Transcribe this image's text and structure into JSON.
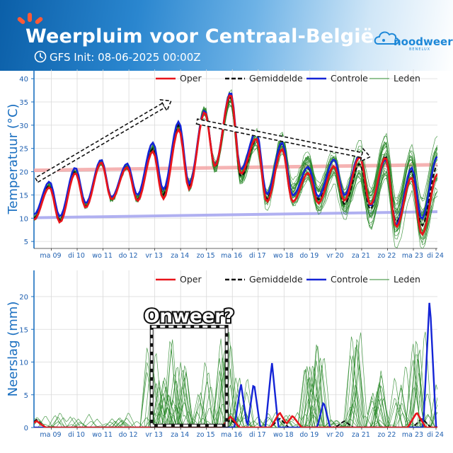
{
  "header": {
    "title": "Weerpluim voor  Centraal-België",
    "init": "GFS Init: 08-06-2025 00:00Z",
    "logo_text": "noodweer",
    "logo_sub": "BENELUX",
    "sun_icon": "sun-rays-icon",
    "clock_icon": "clock-icon",
    "logo_icon": "cloud-logo-icon"
  },
  "colors": {
    "oper": "#e8141b",
    "mean": "#111111",
    "control": "#1424d6",
    "members": "#2b8a2b",
    "normal_max": "#f2a0a0",
    "normal_min": "#a7a7f0",
    "axis_label": "#1a6fc0",
    "tick_label": "#2060b0"
  },
  "chart_data": [
    {
      "type": "line",
      "ylabel": "Temperatuur (°C)",
      "ylim": [
        3.5,
        42
      ],
      "yticks": [
        5,
        10,
        15,
        20,
        25,
        30,
        35,
        40
      ],
      "xlim": [
        0,
        15.6
      ],
      "x_tick_positions": [
        0.67,
        1.67,
        2.67,
        3.67,
        4.67,
        5.67,
        6.67,
        7.67,
        8.67,
        9.67,
        10.67,
        11.67,
        12.67,
        13.67,
        14.67,
        15.67
      ],
      "x_tick_labels": [
        "ma 09",
        "di 10",
        "wo 11",
        "do 12",
        "vr 13",
        "za 14",
        "zo 15",
        "ma 16",
        "di 17",
        "wo 18",
        "do 19",
        "vr 20",
        "za 21",
        "zo 22",
        "ma 23",
        "di 24"
      ],
      "legend": [
        "Oper",
        "Gemiddelde",
        "Controle",
        "Leden"
      ],
      "legend_position": "top",
      "grid": true,
      "normal_max": {
        "x": [
          0,
          15.6
        ],
        "y": [
          20.3,
          21.5
        ]
      },
      "normal_min": {
        "x": [
          0,
          15.6
        ],
        "y": [
          10.1,
          11.4
        ]
      },
      "day_min": [
        10,
        9.5,
        12.5,
        14,
        14,
        15,
        17,
        21,
        19,
        14,
        15,
        14,
        13,
        12,
        9,
        8.5
      ],
      "day_max": [
        17,
        20,
        22,
        21,
        25,
        30,
        33,
        36,
        27,
        26,
        21,
        21,
        22,
        23,
        20.5,
        21,
        18
      ],
      "members_count": 30,
      "series": [
        {
          "name": "Oper",
          "role": "oper"
        },
        {
          "name": "Gemiddelde",
          "role": "mean"
        },
        {
          "name": "Controle",
          "role": "control"
        },
        {
          "name": "Leden",
          "role": "members"
        }
      ],
      "annotations": [
        {
          "type": "dashed-arrow",
          "from": [
            0.1,
            18.2
          ],
          "to": [
            5.3,
            35.2
          ]
        },
        {
          "type": "dashed-arrow",
          "from": [
            6.3,
            30.8
          ],
          "to": [
            13.0,
            23.2
          ]
        }
      ]
    },
    {
      "type": "line",
      "ylabel": "Neerslag (mm)",
      "ylim": [
        0,
        24
      ],
      "yticks": [
        0,
        5,
        10,
        15,
        20
      ],
      "xlim": [
        0,
        15.6
      ],
      "x_tick_positions": [
        0.67,
        1.67,
        2.67,
        3.67,
        4.67,
        5.67,
        6.67,
        7.67,
        8.67,
        9.67,
        10.67,
        11.67,
        12.67,
        13.67,
        14.67,
        15.67
      ],
      "x_tick_labels": [
        "ma 09",
        "di 10",
        "wo 11",
        "do 12",
        "vr 13",
        "za 14",
        "zo 15",
        "ma 16",
        "di 17",
        "wo 18",
        "do 19",
        "vr 20",
        "za 21",
        "zo 22",
        "ma 23",
        "di 24"
      ],
      "legend": [
        "Oper",
        "Gemiddelde",
        "Controle",
        "Leden"
      ],
      "legend_position": "top",
      "grid": true,
      "series": [
        {
          "name": "Oper",
          "role": "oper"
        },
        {
          "name": "Gemiddelde",
          "role": "mean"
        },
        {
          "name": "Controle",
          "role": "control"
        },
        {
          "name": "Leden",
          "role": "members"
        }
      ],
      "control_peaks": [
        [
          8.0,
          6.8
        ],
        [
          8.5,
          7.0
        ],
        [
          9.2,
          10.0
        ],
        [
          11.2,
          4.0
        ],
        [
          15.3,
          20.0
        ]
      ],
      "oper_peaks": [
        [
          0.1,
          1.0
        ],
        [
          7.6,
          1.7
        ],
        [
          9.5,
          2.3
        ],
        [
          10.0,
          1.8
        ],
        [
          14.8,
          2.3
        ]
      ],
      "member_peaks": [
        [
          4.6,
          14.3
        ],
        [
          5.0,
          9.0
        ],
        [
          5.5,
          15.0
        ],
        [
          6.0,
          12.0
        ],
        [
          6.6,
          11.0
        ],
        [
          7.4,
          15.5
        ],
        [
          8.0,
          8.0
        ],
        [
          10.7,
          10.5
        ],
        [
          11.0,
          19.8
        ],
        [
          12.4,
          16.0
        ],
        [
          13.3,
          9.0
        ],
        [
          14.2,
          12.0
        ],
        [
          14.9,
          17.5
        ],
        [
          15.4,
          8.0
        ]
      ],
      "annotations": [
        {
          "type": "dashed-box",
          "label": "Onweer?",
          "x0": 4.55,
          "x1": 7.45,
          "y0": 0.3,
          "y1": 15.4
        }
      ]
    }
  ]
}
